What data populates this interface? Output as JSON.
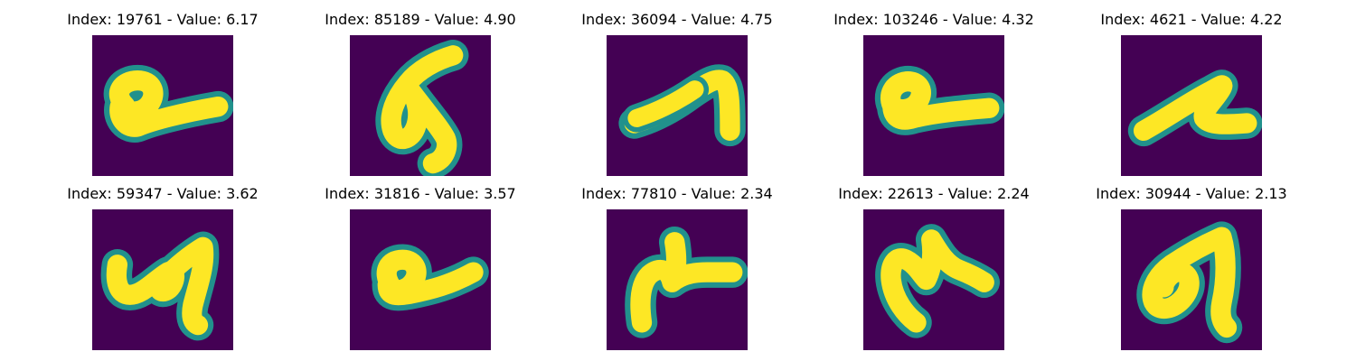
{
  "colors": {
    "background": "#440154",
    "edge": "#21918c",
    "stroke": "#fde725"
  },
  "panels": [
    {
      "title": "Index: 19761 - Value: 6.17",
      "glyph": "g0"
    },
    {
      "title": "Index: 85189 - Value: 4.90",
      "glyph": "g1"
    },
    {
      "title": "Index: 36094 - Value: 4.75",
      "glyph": "g2"
    },
    {
      "title": "Index: 103246 - Value: 4.32",
      "glyph": "g3"
    },
    {
      "title": "Index: 4621 - Value: 4.22",
      "glyph": "g4"
    },
    {
      "title": "Index: 59347 - Value: 3.62",
      "glyph": "g5"
    },
    {
      "title": "Index: 31816 - Value: 3.57",
      "glyph": "g6"
    },
    {
      "title": "Index: 77810 - Value: 2.34",
      "glyph": "g7"
    },
    {
      "title": "Index: 22613 - Value: 2.24",
      "glyph": "g8"
    },
    {
      "title": "Index: 30944 - Value: 2.13",
      "glyph": "g9"
    }
  ]
}
